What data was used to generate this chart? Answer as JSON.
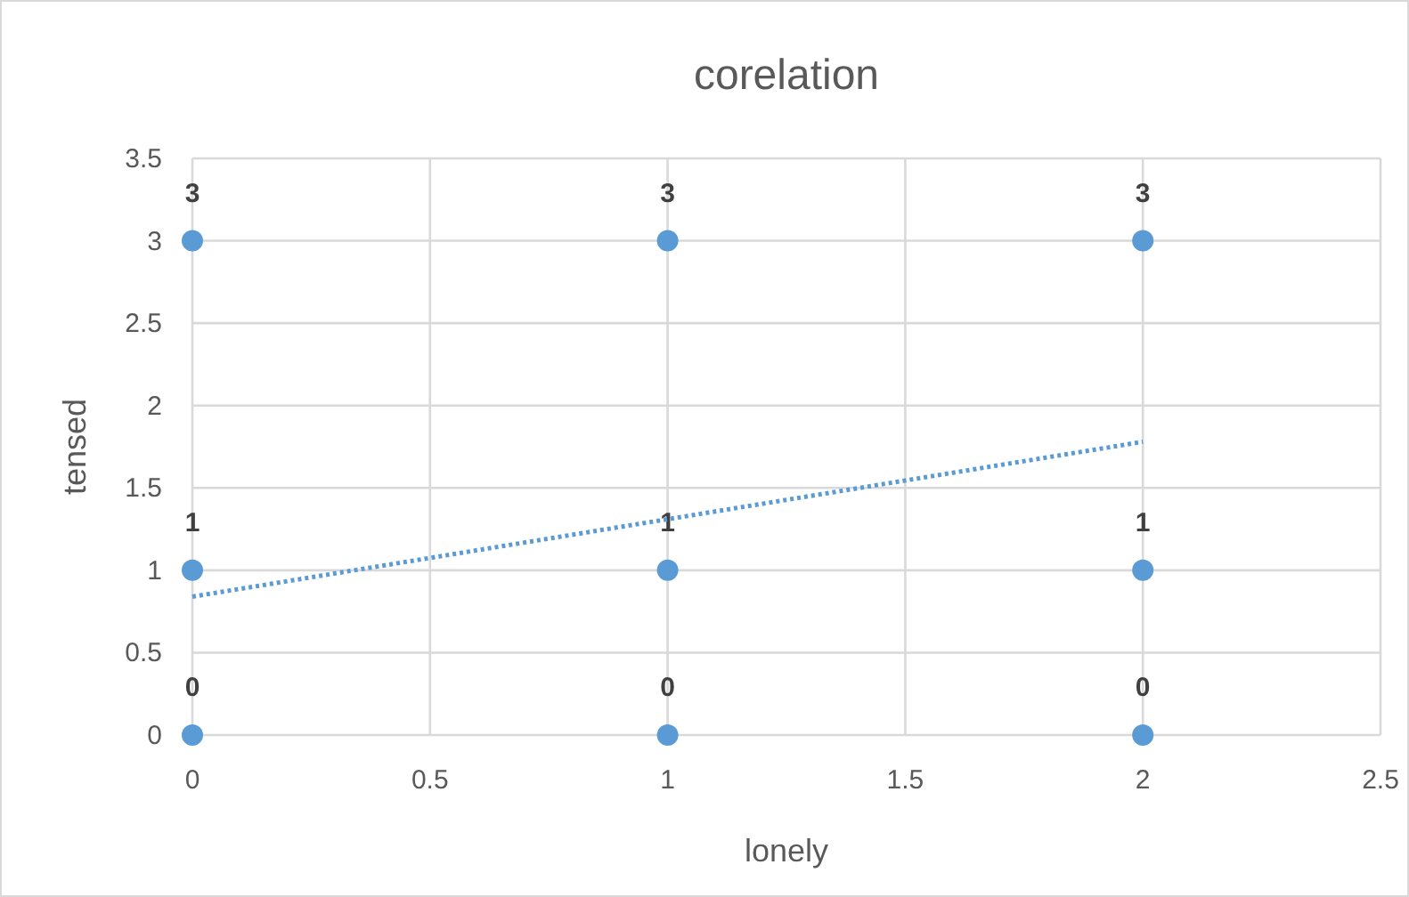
{
  "chart_data": {
    "type": "scatter",
    "title": "corelation",
    "xlabel": "lonely",
    "ylabel": "tensed",
    "x": [
      0,
      0,
      0,
      1,
      1,
      1,
      2,
      2,
      2
    ],
    "series": [
      {
        "color": "#5b9bd5",
        "values": [
          0,
          1,
          3,
          0,
          1,
          3,
          0,
          1,
          3
        ],
        "value_labels": [
          "0",
          "1",
          "3",
          "0",
          "1",
          "3",
          "0",
          "1",
          "3"
        ]
      },
      {
        "type": "line",
        "color": "#5b9bd5",
        "x": [
          0,
          2
        ],
        "values": [
          0.84,
          1.78
        ],
        "line_style": "dotted",
        "marker": "none"
      }
    ],
    "xlim": [
      0,
      2.5
    ],
    "xticks": [
      0,
      0.5,
      1,
      1.5,
      2,
      2.5
    ],
    "ylim": [
      0,
      3.5
    ],
    "yticks": [
      0,
      0.5,
      1,
      1.5,
      2,
      2.5,
      3,
      3.5
    ],
    "grid": true,
    "marker": "circle"
  }
}
